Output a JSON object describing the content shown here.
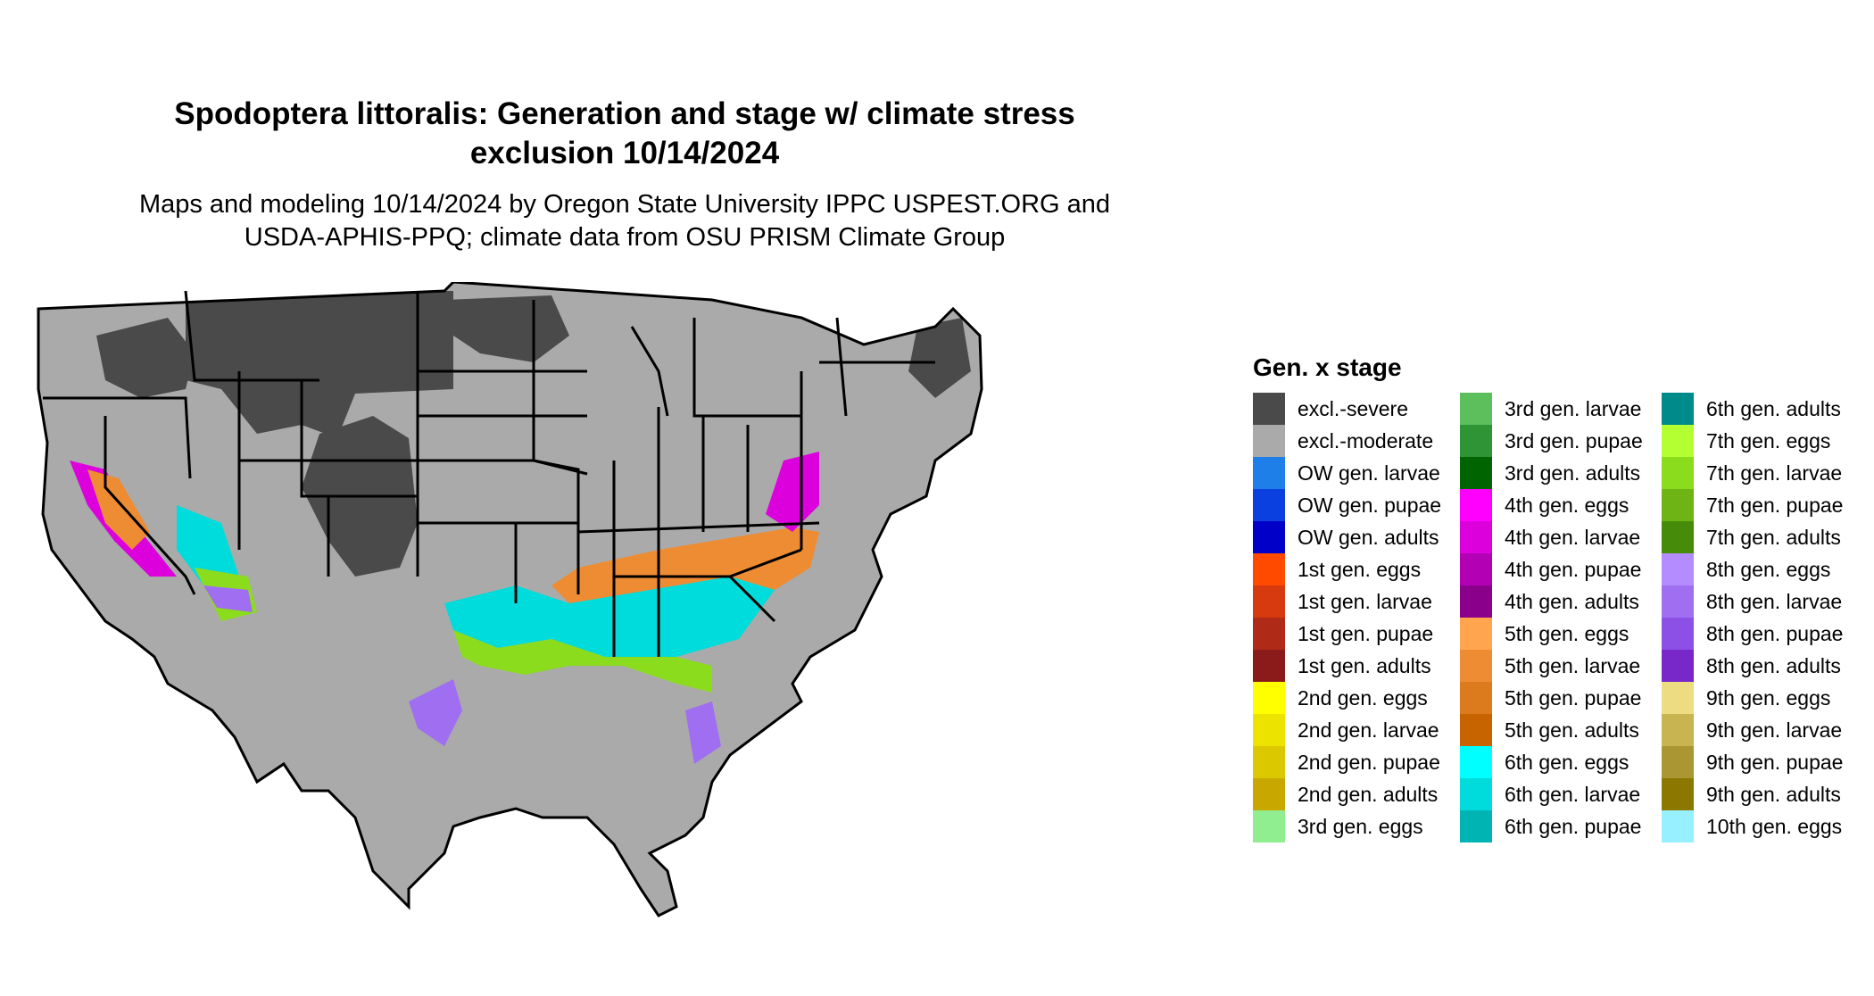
{
  "title": {
    "line1": "Spodoptera littoralis: Generation and stage w/ climate stress",
    "line2": "exclusion 10/14/2024"
  },
  "subtitle": {
    "line1": "Maps and modeling 10/14/2024 by Oregon State University IPPC USPEST.ORG and",
    "line2": "USDA-APHIS-PPQ; climate data from OSU PRISM Climate Group"
  },
  "map": {
    "region": "Contiguous United States",
    "colors": {
      "excl_severe": "#4a4a4a",
      "excl_moderate": "#aaaaaa",
      "state_border": "#000000"
    }
  },
  "legend": {
    "title": "Gen. x stage",
    "columns": [
      [
        {
          "label": "excl.-severe",
          "color": "#4a4a4a"
        },
        {
          "label": "excl.-moderate",
          "color": "#aaaaaa"
        },
        {
          "label": "OW gen. larvae",
          "color": "#1f7fe8"
        },
        {
          "label": "OW gen. pupae",
          "color": "#0a3fe0"
        },
        {
          "label": "OW gen. adults",
          "color": "#0000c8"
        },
        {
          "label": "1st gen. eggs",
          "color": "#ff4a00"
        },
        {
          "label": "1st gen. larvae",
          "color": "#d63a0e"
        },
        {
          "label": "1st gen. pupae",
          "color": "#b02a18"
        },
        {
          "label": "1st gen. adults",
          "color": "#8b1a1a"
        },
        {
          "label": "2nd gen. eggs",
          "color": "#ffff00"
        },
        {
          "label": "2nd gen. larvae",
          "color": "#ece400"
        },
        {
          "label": "2nd gen. pupae",
          "color": "#dcc800"
        },
        {
          "label": "2nd gen. adults",
          "color": "#c8a800"
        },
        {
          "label": "3rd gen. eggs",
          "color": "#90ee90"
        }
      ],
      [
        {
          "label": "3rd gen. larvae",
          "color": "#5cbf5c"
        },
        {
          "label": "3rd gen. pupae",
          "color": "#2e9436"
        },
        {
          "label": "3rd gen. adults",
          "color": "#006400"
        },
        {
          "label": "4th gen. eggs",
          "color": "#ff00ff"
        },
        {
          "label": "4th gen. larvae",
          "color": "#dc00dc"
        },
        {
          "label": "4th gen. pupae",
          "color": "#b400b4"
        },
        {
          "label": "4th gen. adults",
          "color": "#8b008b"
        },
        {
          "label": "5th gen. eggs",
          "color": "#ffa54f"
        },
        {
          "label": "5th gen. larvae",
          "color": "#ee8c33"
        },
        {
          "label": "5th gen. pupae",
          "color": "#dc7a1e"
        },
        {
          "label": "5th gen. adults",
          "color": "#c86400"
        },
        {
          "label": "6th gen. eggs",
          "color": "#00ffff"
        },
        {
          "label": "6th gen. larvae",
          "color": "#00dcdc"
        },
        {
          "label": "6th gen. pupae",
          "color": "#00b4b4"
        }
      ],
      [
        {
          "label": "6th gen. adults",
          "color": "#008b8b"
        },
        {
          "label": "7th gen. eggs",
          "color": "#b4ff32"
        },
        {
          "label": "7th gen. larvae",
          "color": "#8cdc1e"
        },
        {
          "label": "7th gen. pupae",
          "color": "#6eb414"
        },
        {
          "label": "7th gen. adults",
          "color": "#468c0a"
        },
        {
          "label": "8th gen. eggs",
          "color": "#b48cff"
        },
        {
          "label": "8th gen. larvae",
          "color": "#a06ef0"
        },
        {
          "label": "8th gen. pupae",
          "color": "#8c50e6"
        },
        {
          "label": "8th gen. adults",
          "color": "#7828c8"
        },
        {
          "label": "9th gen. eggs",
          "color": "#eedc82"
        },
        {
          "label": "9th gen. larvae",
          "color": "#c8b450"
        },
        {
          "label": "9th gen. pupae",
          "color": "#aa9632"
        },
        {
          "label": "9th gen. adults",
          "color": "#8c7800"
        },
        {
          "label": "10th gen. eggs",
          "color": "#96f0ff"
        }
      ]
    ]
  }
}
